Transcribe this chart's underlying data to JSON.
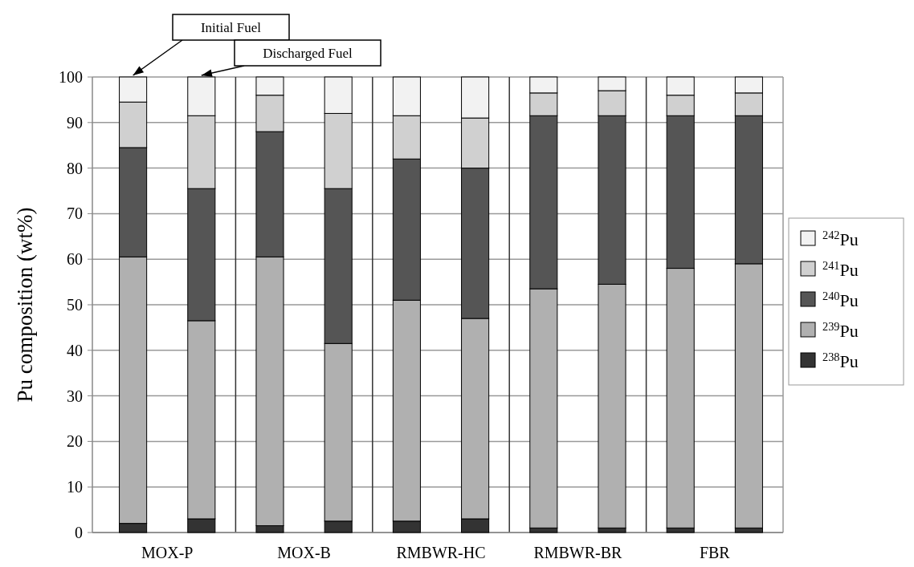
{
  "chart_data": {
    "type": "bar",
    "stacked": true,
    "ylabel": "Pu composition (wt%)",
    "categories": [
      "MOX-P",
      null,
      "MOX-B",
      null,
      "RMBWR-HC",
      null,
      "RMBWR-BR",
      null,
      "FBR",
      null
    ],
    "series": [
      {
        "name": "$^{238}$Pu",
        "color": "#333333",
        "values": [
          2,
          3,
          1.5,
          2.5,
          2.5,
          3,
          1,
          1,
          1,
          1
        ]
      },
      {
        "name": "$^{239}$Pu",
        "color": "#b0b0b0",
        "values": [
          58.5,
          43.5,
          59,
          39,
          48.5,
          44,
          52.5,
          53.5,
          57,
          58
        ]
      },
      {
        "name": "$^{240}$Pu",
        "color": "#555555",
        "values": [
          24,
          29,
          27.5,
          34,
          31,
          33,
          38,
          37,
          33.5,
          32.5
        ]
      },
      {
        "name": "$^{241}$Pu",
        "color": "#d0d0d0",
        "values": [
          10,
          16,
          8,
          16.5,
          9.5,
          11,
          5,
          5.5,
          4.5,
          5
        ]
      },
      {
        "name": "$^{242}$Pu",
        "color": "#f2f2f2",
        "values": [
          5.5,
          8.5,
          4,
          8,
          8.5,
          9,
          3.5,
          3,
          4,
          3.5
        ]
      }
    ],
    "ylim": [
      0,
      100
    ],
    "yticks": [
      0,
      10,
      20,
      30,
      40,
      50,
      60,
      70,
      80,
      90,
      100
    ],
    "grid": true,
    "legend": "right",
    "annotations": [
      "Initial Fuel",
      "Discharged Fuel"
    ]
  }
}
